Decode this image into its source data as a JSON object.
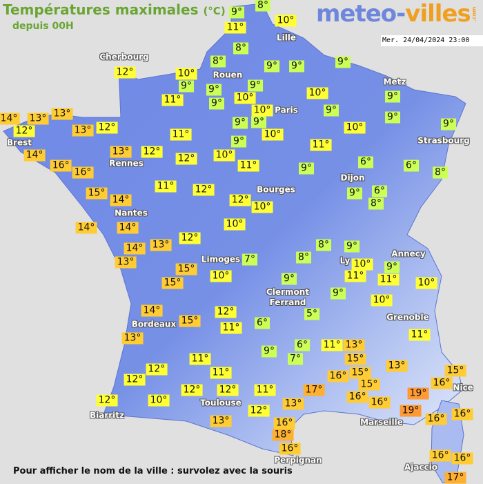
{
  "header": {
    "title": "Températures maximales",
    "unit": "(°C)",
    "subtitle": "depuis 00H",
    "date": "Mer. 24/04/2024 23:00"
  },
  "logo": {
    "part1": "meteo-",
    "part2": "villes",
    "part3": ".com"
  },
  "footer": {
    "hint": "Pour afficher le nom de la ville : survolez avec la souris"
  },
  "colors": {
    "background": "#e0e0e0",
    "land": "#7089e4",
    "cold": "#ccff55",
    "mild": "#ffff33",
    "warm": "#ffcc33",
    "hot": "#ffb030",
    "hottest": "#ff9933",
    "title": "#6aa533"
  },
  "cities": [
    "Lille",
    "Cherbourg",
    "Rouen",
    "Paris",
    "Metz",
    "Strasbourg",
    "Brest",
    "Rennes",
    "Nantes",
    "Dijon",
    "Bourges",
    "Limoges",
    "Clermont\nFerrand",
    "Ly",
    "Annecy",
    "Grenoble",
    "Bordeaux",
    "Toulouse",
    "Biarritz",
    "Marseille",
    "Nice",
    "Perpignan",
    "Ajaccio"
  ],
  "stations": [
    9,
    8,
    10,
    11,
    8,
    8,
    9,
    9,
    9,
    10,
    9,
    9,
    9,
    9,
    10,
    10,
    9,
    10,
    9,
    9,
    10,
    9,
    10,
    9,
    9,
    9,
    11,
    12,
    14,
    13,
    12,
    13,
    13,
    12,
    14,
    16,
    16,
    13,
    12,
    11,
    12,
    10,
    11,
    11,
    9,
    6,
    6,
    8,
    9,
    6,
    8,
    11,
    12,
    12,
    10,
    15,
    14,
    14,
    14,
    13,
    12,
    14,
    13,
    10,
    7,
    15,
    15,
    10,
    8,
    8,
    9,
    10,
    11,
    9,
    11,
    10,
    9,
    9,
    10,
    5,
    6,
    12,
    11,
    14,
    15,
    13,
    11,
    11,
    12,
    12,
    12,
    12,
    10,
    12,
    13,
    9,
    6,
    7,
    11,
    13,
    15,
    15,
    16,
    13,
    11,
    11,
    12,
    13,
    17,
    16,
    18,
    16,
    15,
    16,
    16,
    19,
    19,
    16,
    15,
    16,
    16,
    16,
    16,
    17
  ]
}
